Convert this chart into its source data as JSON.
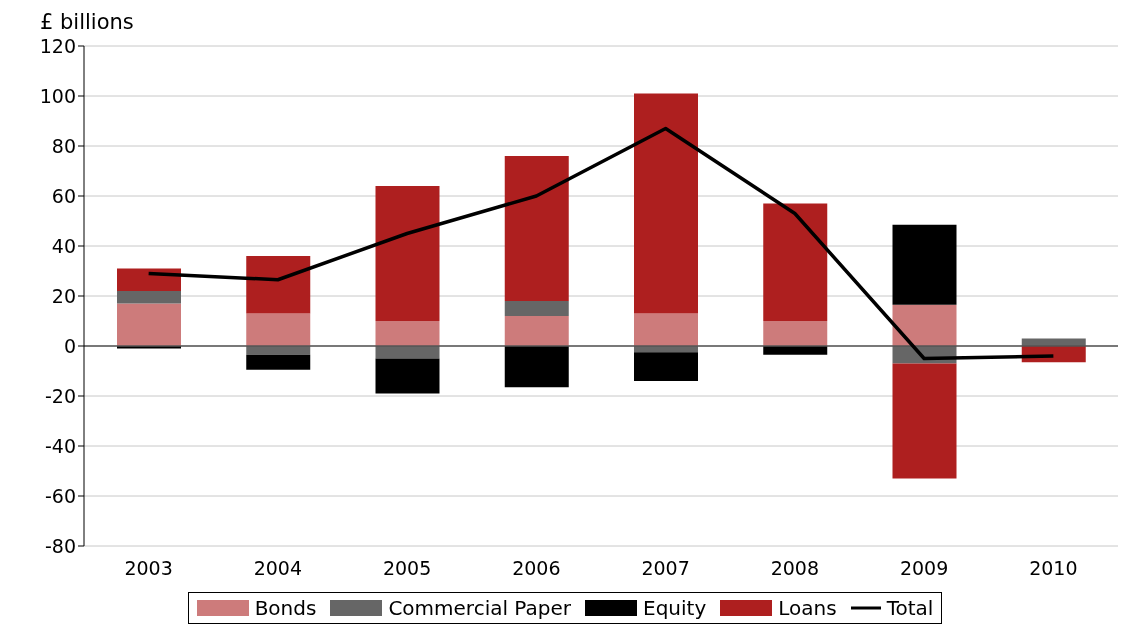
{
  "chart_data": {
    "type": "bar",
    "stacked": true,
    "ylabel": "£ billions",
    "categories": [
      "2003",
      "2004",
      "2005",
      "2006",
      "2007",
      "2008",
      "2009",
      "2010"
    ],
    "series": [
      {
        "name": "Bonds",
        "color": "#cd7b7b",
        "values": [
          17,
          13,
          10,
          12,
          13,
          10,
          16.5,
          0
        ]
      },
      {
        "name": "Commercial Paper",
        "color": "#666666",
        "values": [
          5,
          -3.5,
          -5,
          6,
          -2.5,
          0,
          -7,
          3
        ]
      },
      {
        "name": "Equity",
        "color": "#000000",
        "values": [
          -1,
          -6,
          -14,
          -16.5,
          -11.5,
          -3.5,
          32,
          0
        ]
      },
      {
        "name": "Loans",
        "color": "#ae1f1f",
        "values": [
          9,
          23,
          54,
          58,
          88,
          47,
          -46,
          -6.5
        ]
      },
      {
        "name": "Total",
        "type": "line",
        "color": "#000000",
        "values": [
          29,
          26.5,
          45,
          60,
          87,
          53,
          -5,
          -4
        ]
      }
    ],
    "ylim": [
      -80,
      120
    ],
    "yticks": [
      -80,
      -60,
      -40,
      -20,
      0,
      20,
      40,
      60,
      80,
      100,
      120
    ],
    "grid": "y",
    "legend": "bottom",
    "marker": "none"
  }
}
